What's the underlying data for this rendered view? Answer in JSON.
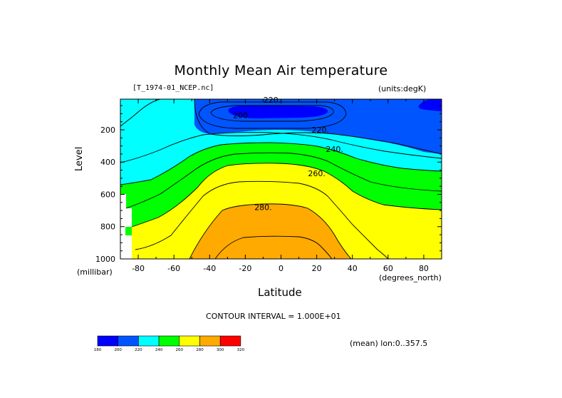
{
  "chart_data": {
    "type": "contour",
    "title": "Monthly Mean Air temperature",
    "file": "[T_1974-01_NCEP.nc]",
    "units": "(units:degK)",
    "xlabel": "Latitude",
    "xunit": "(degrees_north)",
    "ylabel": "Level",
    "yunit": "(millibar)",
    "xlim": [
      -90,
      90
    ],
    "ylim": [
      1000,
      10
    ],
    "xticks": [
      "-80",
      "-60",
      "-40",
      "-20",
      "0",
      "20",
      "40",
      "60",
      "80"
    ],
    "yticks": [
      "200",
      "400",
      "600",
      "800",
      "1000"
    ],
    "contour_labels": [
      {
        "text": "220.",
        "lat": -5,
        "level": 15
      },
      {
        "text": "200.",
        "lat": -22,
        "level": 110
      },
      {
        "text": "220.",
        "lat": 22,
        "level": 200
      },
      {
        "text": "240.",
        "lat": 30,
        "level": 320
      },
      {
        "text": "260.",
        "lat": 20,
        "level": 470
      },
      {
        "text": "280.",
        "lat": -10,
        "level": 680
      }
    ],
    "contour_interval": "CONTOUR INTERVAL = 1.000E+01",
    "mean_note": "(mean) lon:0..357.5",
    "colorbar": {
      "values": [
        "180",
        "200",
        "220",
        "240",
        "260",
        "280",
        "300",
        "320"
      ],
      "colors": [
        "#0000ff",
        "#0055ff",
        "#00ffff",
        "#00ff00",
        "#ffff00",
        "#ffaa00",
        "#ff0000"
      ]
    },
    "fill_colors": {
      "t180": "#0000ff",
      "t200": "#0055ff",
      "t220": "#00ffff",
      "t240": "#00ff00",
      "t260": "#ffff00",
      "t280": "#ffaa00",
      "t300": "#ff0000"
    }
  }
}
